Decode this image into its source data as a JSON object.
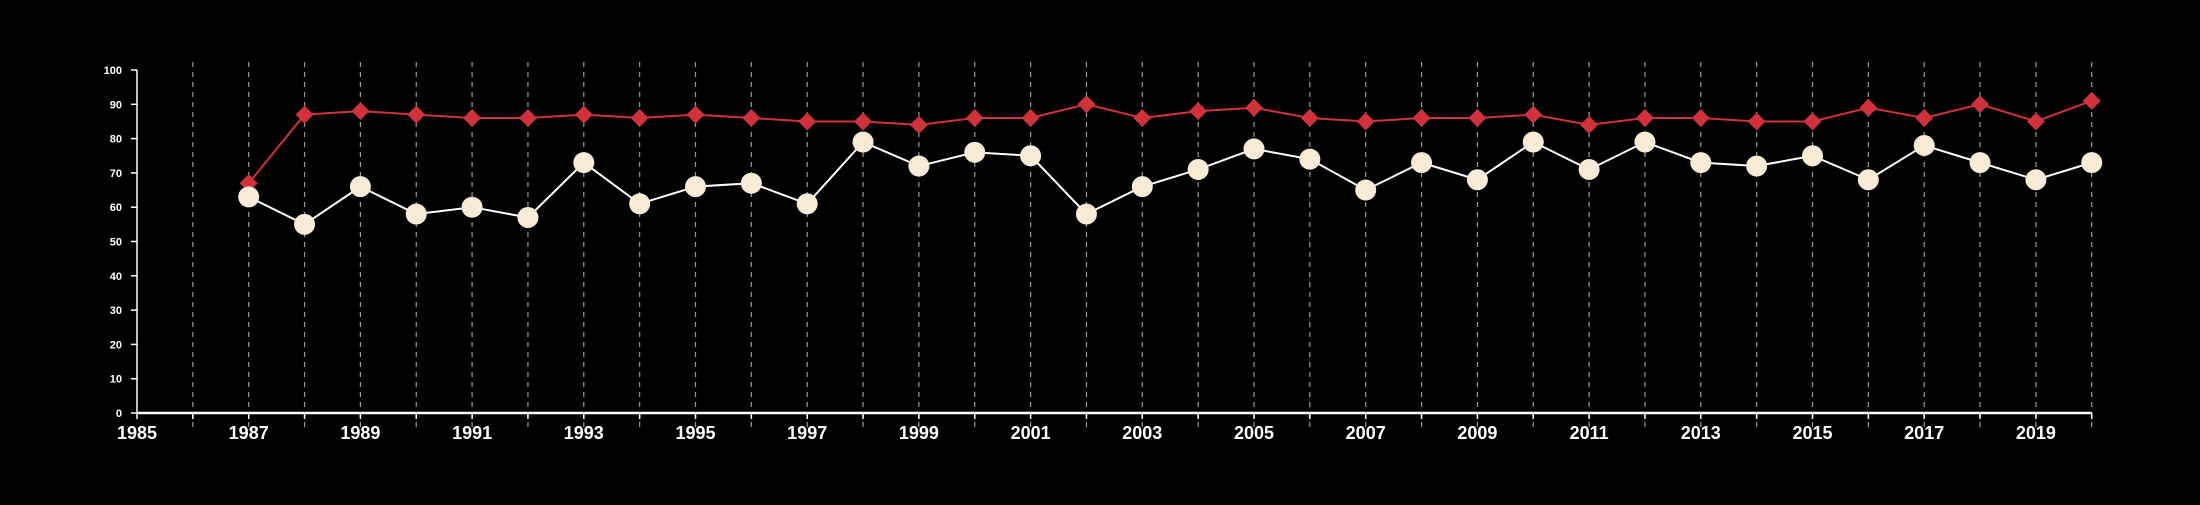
{
  "chart_data": {
    "type": "line",
    "title": "",
    "xlabel": "",
    "ylabel": "",
    "xlim": [
      1985,
      2020
    ],
    "ylim": [
      0,
      100
    ],
    "x_ticks": [
      1985,
      1987,
      1989,
      1991,
      1993,
      1995,
      1997,
      1999,
      2001,
      2003,
      2005,
      2007,
      2009,
      2011,
      2013,
      2015,
      2017,
      2019
    ],
    "y_ticks": [
      0,
      10,
      20,
      30,
      40,
      50,
      60,
      70,
      80,
      90,
      100
    ],
    "vertical_grid": "dashed, every year",
    "horizontal_grid": false,
    "legend": "none",
    "x": [
      1987,
      1988,
      1989,
      1990,
      1991,
      1992,
      1993,
      1994,
      1995,
      1996,
      1997,
      1998,
      1999,
      2000,
      2001,
      2002,
      2003,
      2004,
      2005,
      2006,
      2007,
      2008,
      2009,
      2010,
      2011,
      2012,
      2013,
      2014,
      2015,
      2016,
      2017,
      2018,
      2019,
      2020
    ],
    "series": [
      {
        "marker": "diamond",
        "color": "#d0323c",
        "values": [
          67,
          87,
          88,
          87,
          86,
          86,
          87,
          86,
          87,
          86,
          85,
          85,
          84,
          86,
          86,
          90,
          86,
          88,
          89,
          86,
          85,
          86,
          86,
          87,
          84,
          86,
          86,
          85,
          85,
          89,
          86,
          90,
          85,
          91
        ]
      },
      {
        "marker": "circle",
        "color": "#faebd7",
        "line_color": "#ffffff",
        "values": [
          63,
          55,
          66,
          58,
          60,
          57,
          73,
          61,
          66,
          67,
          61,
          79,
          72,
          76,
          75,
          58,
          66,
          71,
          77,
          74,
          65,
          73,
          68,
          79,
          71,
          79,
          73,
          72,
          75,
          68,
          78,
          73,
          68,
          73
        ]
      }
    ]
  }
}
